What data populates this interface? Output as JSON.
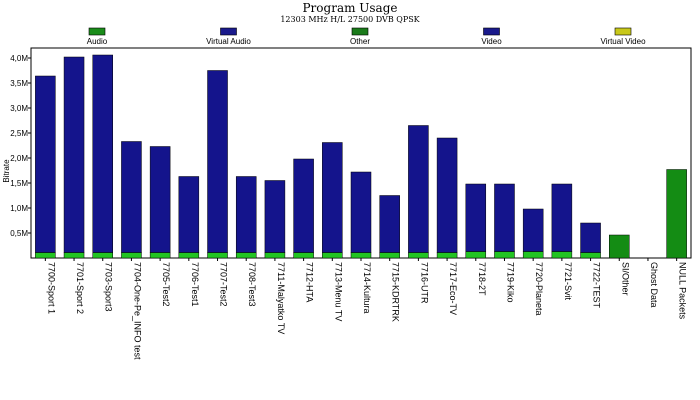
{
  "chart_data": {
    "type": "bar",
    "title": "Program Usage",
    "subtitle": "12303 MHz H/L 27500 DVB QPSK",
    "ylabel": "Bitrate",
    "ylim": [
      0,
      4200000
    ],
    "yticks": [
      {
        "value": 500000,
        "label": "0,5M"
      },
      {
        "value": 1000000,
        "label": "1,0M"
      },
      {
        "value": 1500000,
        "label": "1,5M"
      },
      {
        "value": 2000000,
        "label": "2,0M"
      },
      {
        "value": 2500000,
        "label": "2,5M"
      },
      {
        "value": 3000000,
        "label": "3,0M"
      },
      {
        "value": 3500000,
        "label": "3,5M"
      },
      {
        "value": 4000000,
        "label": "4,0M"
      }
    ],
    "legend": [
      {
        "name": "Audio",
        "color": "#1a8c1a"
      },
      {
        "name": "Virtual Audio",
        "color": "#1a1a8c"
      },
      {
        "name": "Other",
        "color": "#1a7a1a"
      },
      {
        "name": "Video",
        "color": "#1a1a8c"
      },
      {
        "name": "Virtual Video",
        "color": "#c8c81a"
      }
    ],
    "colors": {
      "audio": "#22c422",
      "video": "#14148c",
      "other": "#148c14"
    },
    "categories": [
      "7700-Sport 1",
      "7701-Sport 2",
      "7703-Sport3",
      "7704-One-Pe_INFO test",
      "7705-Test2",
      "7706-Test1",
      "7707-Test2",
      "7708-Test3",
      "7711-Malyatko TV",
      "7712-HTA",
      "7713-Menu TV",
      "7714-Kultura",
      "7715-KDRTRK",
      "7716-UTR",
      "7717-Eco-TV",
      "7718-2T",
      "7719-Kiko",
      "7720-Planeta",
      "7721-Svit",
      "7722-TEST",
      "SI/Other",
      "Ghost Data",
      "NULL Packets"
    ],
    "series": [
      {
        "name": "Audio",
        "values": [
          110000,
          110000,
          110000,
          110000,
          110000,
          110000,
          110000,
          110000,
          110000,
          110000,
          110000,
          110000,
          110000,
          110000,
          110000,
          130000,
          130000,
          130000,
          130000,
          110000,
          0,
          0,
          0
        ]
      },
      {
        "name": "Video",
        "values": [
          3530000,
          3910000,
          3950000,
          2220000,
          2120000,
          1520000,
          3640000,
          1520000,
          1440000,
          1870000,
          2200000,
          1610000,
          1140000,
          2540000,
          2290000,
          1350000,
          1350000,
          850000,
          1350000,
          590000,
          0,
          0,
          0
        ]
      },
      {
        "name": "Other",
        "values": [
          0,
          0,
          0,
          0,
          0,
          0,
          0,
          0,
          0,
          0,
          0,
          0,
          0,
          0,
          0,
          0,
          0,
          0,
          0,
          0,
          460000,
          0,
          1770000
        ]
      }
    ],
    "grid": false
  }
}
